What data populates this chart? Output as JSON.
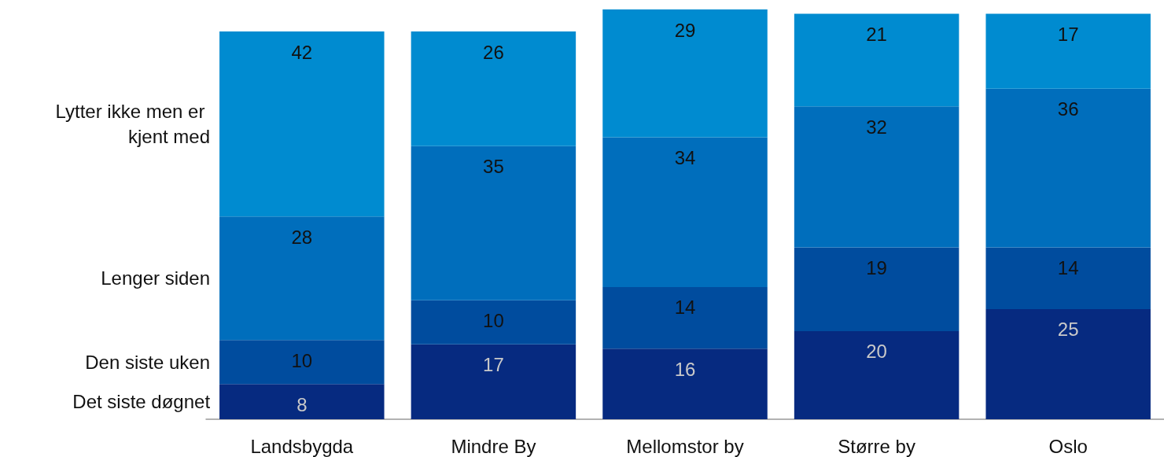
{
  "chart_data": {
    "type": "bar",
    "stacked": true,
    "data_labels": true,
    "legend": false,
    "grid": false,
    "categories": [
      "Landsbygda",
      "Mindre By",
      "Mellomstor by",
      "Større by",
      "Oslo"
    ],
    "series": [
      {
        "name": "Det siste døgnet",
        "color": "#062a80",
        "values": [
          8,
          17,
          16,
          20,
          25
        ]
      },
      {
        "name": "Den siste uken",
        "color": "#004c9e",
        "values": [
          10,
          10,
          14,
          19,
          14
        ]
      },
      {
        "name": "Lenger siden",
        "color": "#006ebc",
        "values": [
          28,
          35,
          34,
          32,
          36
        ]
      },
      {
        "name": "Lytter ikke men er kjent med",
        "color": "#008bd0",
        "values": [
          42,
          26,
          29,
          21,
          17
        ]
      }
    ]
  }
}
